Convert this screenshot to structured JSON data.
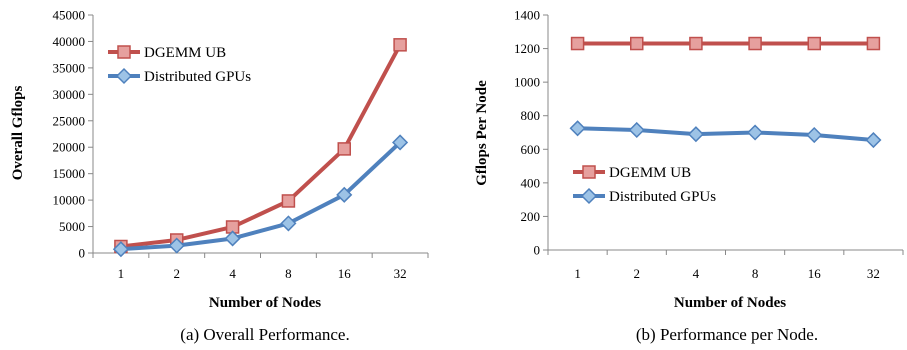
{
  "chart_data": [
    {
      "type": "line",
      "caption": "(a) Overall Performance.",
      "xlabel": "Number of Nodes",
      "ylabel": "Overall  Gflops",
      "categories": [
        "1",
        "2",
        "4",
        "8",
        "16",
        "32"
      ],
      "ylim": [
        0,
        45000
      ],
      "yticks": [
        "0",
        "5000",
        "10000",
        "15000",
        "20000",
        "25000",
        "30000",
        "35000",
        "40000",
        "45000"
      ],
      "legend_position": "top-left",
      "grid": false,
      "series": [
        {
          "name": "DGEMM UB",
          "values": [
            1230,
            2460,
            4920,
            9840,
            19680,
            39360
          ],
          "color": "#c0504d",
          "marker": "square"
        },
        {
          "name": "Distributed GPUs",
          "values": [
            720,
            1400,
            2750,
            5600,
            11000,
            20900
          ],
          "color": "#4f81bd",
          "marker": "diamond"
        }
      ]
    },
    {
      "type": "line",
      "caption": "(b) Performance per Node.",
      "xlabel": "Number of Nodes",
      "ylabel": "Gflops  Per  Node",
      "categories": [
        "1",
        "2",
        "4",
        "8",
        "16",
        "32"
      ],
      "ylim": [
        0,
        1400
      ],
      "yticks": [
        "0",
        "200",
        "400",
        "600",
        "800",
        "1000",
        "1200",
        "1400"
      ],
      "legend_position": "middle-left",
      "grid": false,
      "series": [
        {
          "name": "DGEMM UB",
          "values": [
            1230,
            1230,
            1230,
            1230,
            1230,
            1230
          ],
          "color": "#c0504d",
          "marker": "square"
        },
        {
          "name": "Distributed GPUs",
          "values": [
            725,
            715,
            690,
            700,
            685,
            655
          ],
          "color": "#4f81bd",
          "marker": "diamond"
        }
      ]
    }
  ]
}
